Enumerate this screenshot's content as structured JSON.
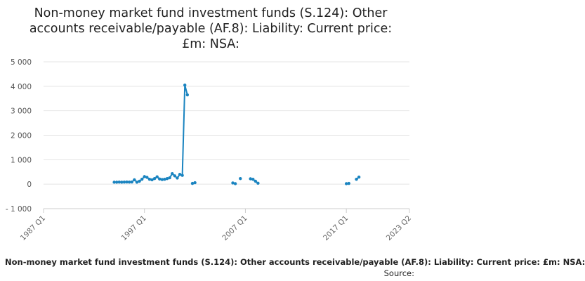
{
  "title_lines": [
    "Non-money market fund investment funds (S.124): Other",
    "accounts receivable/payable (AF.8): Liability: Current price:",
    "£m: NSA:"
  ],
  "legend_text": "Non-money market fund investment funds (S.124): Other accounts receivable/payable (AF.8): Liability: Current price: £m: NSA:",
  "source_label": "Source:",
  "colors": {
    "series": "#1a84c0",
    "grid": "#e4e4e4",
    "axis": "#cccccc"
  },
  "chart_data": {
    "type": "line",
    "title": "Non-money market fund investment funds (S.124): Other accounts receivable/payable (AF.8): Liability: Current price: £m: NSA:",
    "x_unit": "quarter",
    "xlim": [
      "1987 Q1",
      "2023 Q2"
    ],
    "x_ticks": [
      "1987 Q1",
      "1997 Q1",
      "2007 Q1",
      "2017 Q1",
      "2023 Q2"
    ],
    "ylim": [
      -1000,
      5000
    ],
    "y_ticks": [
      -1000,
      0,
      1000,
      2000,
      3000,
      4000,
      5000
    ],
    "y_tick_labels": [
      "- 1 000",
      "0",
      "1 000",
      "2 000",
      "3 000",
      "4 000",
      "5 000"
    ],
    "grid": true,
    "series": [
      {
        "name": "Non-money market fund investment funds (S.124): Other accounts receivable/payable (AF.8): Liability: Current price: £m: NSA:",
        "segments": [
          [
            [
              "1994 Q1",
              80
            ],
            [
              "1994 Q2",
              80
            ],
            [
              "1994 Q3",
              85
            ],
            [
              "1994 Q4",
              80
            ],
            [
              "1995 Q1",
              85
            ],
            [
              "1995 Q2",
              90
            ],
            [
              "1995 Q3",
              85
            ],
            [
              "1995 Q4",
              90
            ],
            [
              "1996 Q1",
              180
            ],
            [
              "1996 Q2",
              80
            ],
            [
              "1996 Q3",
              120
            ],
            [
              "1996 Q4",
              200
            ],
            [
              "1997 Q1",
              310
            ],
            [
              "1997 Q2",
              280
            ],
            [
              "1997 Q3",
              200
            ],
            [
              "1997 Q4",
              180
            ],
            [
              "1998 Q1",
              230
            ],
            [
              "1998 Q2",
              300
            ],
            [
              "1998 Q3",
              210
            ],
            [
              "1998 Q4",
              190
            ],
            [
              "1999 Q1",
              200
            ],
            [
              "1999 Q2",
              230
            ],
            [
              "1999 Q3",
              260
            ],
            [
              "1999 Q4",
              430
            ],
            [
              "2000 Q1",
              340
            ],
            [
              "2000 Q2",
              250
            ],
            [
              "2000 Q3",
              400
            ],
            [
              "2000 Q4",
              360
            ],
            [
              "2001 Q1",
              4050
            ],
            [
              "2001 Q2",
              3650
            ]
          ],
          [
            [
              "2001 Q4",
              30
            ],
            [
              "2002 Q1",
              60
            ]
          ],
          [
            [
              "2005 Q4",
              50
            ],
            [
              "2006 Q1",
              20
            ]
          ],
          [
            [
              "2006 Q3",
              230
            ]
          ],
          [
            [
              "2007 Q3",
              220
            ],
            [
              "2007 Q4",
              200
            ],
            [
              "2008 Q1",
              120
            ],
            [
              "2008 Q2",
              40
            ]
          ],
          [
            [
              "2017 Q1",
              20
            ],
            [
              "2017 Q2",
              30
            ]
          ],
          [
            [
              "2018 Q1",
              200
            ],
            [
              "2018 Q2",
              290
            ]
          ]
        ]
      }
    ]
  }
}
